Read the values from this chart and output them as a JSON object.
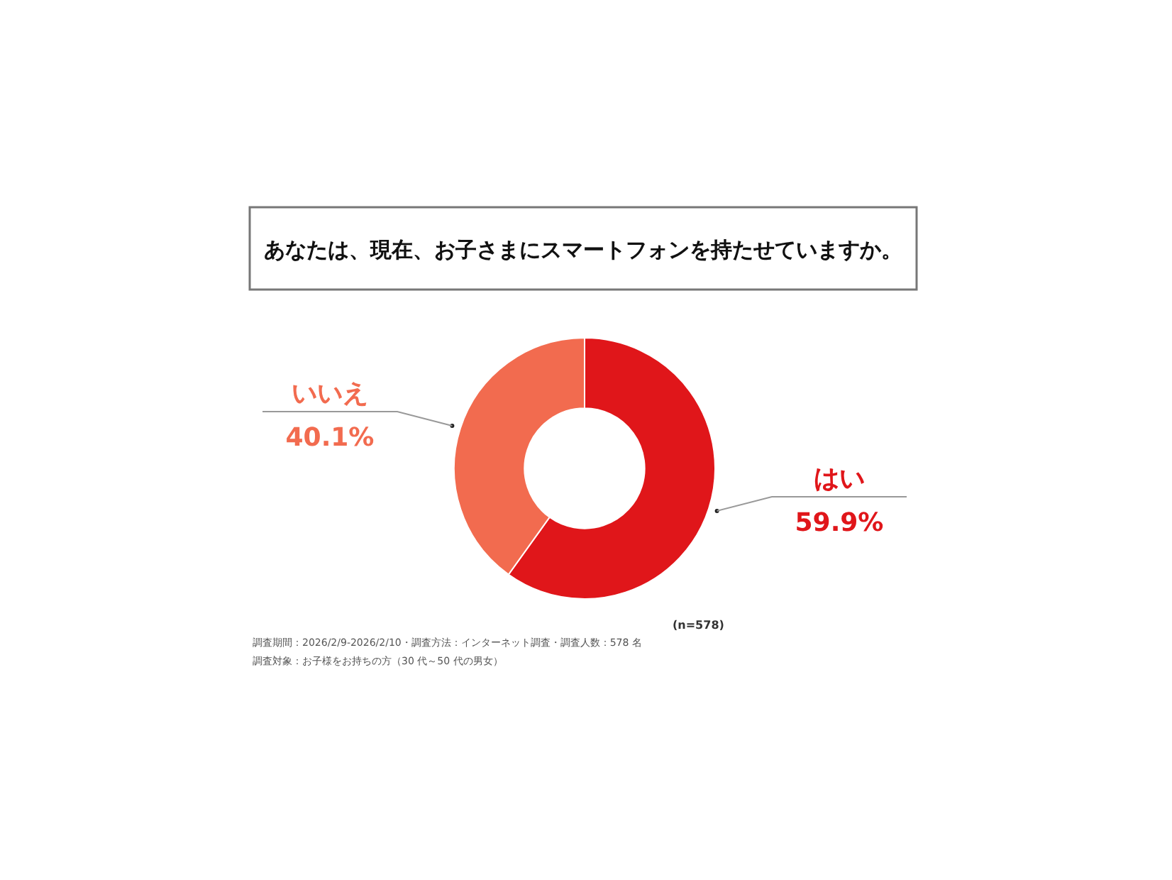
{
  "chart_data": {
    "type": "donut",
    "title": "あなたは、現在、お子さまにスマートフォンを持たせていますか。",
    "categories": [
      "はい",
      "いいえ"
    ],
    "values": [
      59.9,
      40.1
    ],
    "colors": [
      "#e0161a",
      "#f26b4f"
    ],
    "value_labels": [
      "59.9%",
      "40.1%"
    ],
    "annotations": [
      "(n=578)",
      "調査期間：2026/2/9-2026/2/10・調査方法：インターネット調査・調査人数：578 名",
      "調査対象：お子様をお持ちの方（30 代～50 代の男女）"
    ]
  }
}
